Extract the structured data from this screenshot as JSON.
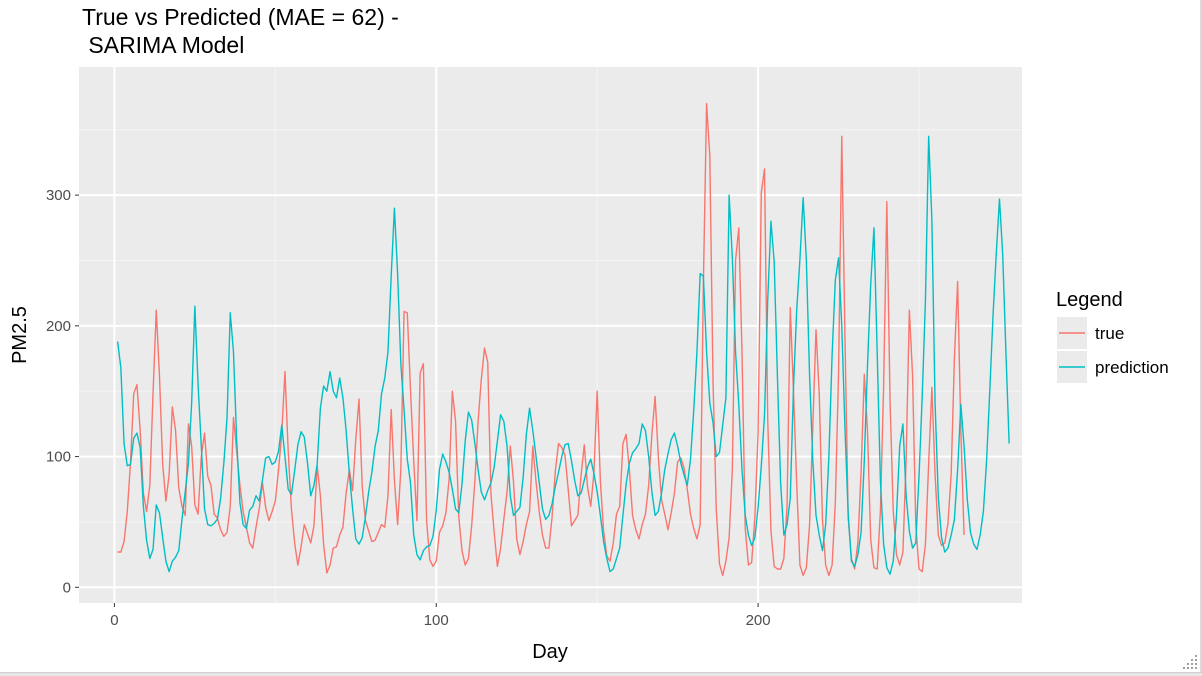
{
  "window": {
    "resize_grip_icon": "resize-grip-icon"
  },
  "chart_data": {
    "type": "line",
    "title_lines": [
      "True vs Predicted (MAE = 62) -",
      " SARIMA Model"
    ],
    "xlabel": "Day",
    "ylabel": "PM2.5",
    "xlim": [
      -11,
      282
    ],
    "ylim": [
      -12,
      398
    ],
    "x_ticks": [
      0,
      100,
      200
    ],
    "x_tick_labels": [
      "0",
      "100",
      "200"
    ],
    "y_ticks": [
      0,
      100,
      200,
      300
    ],
    "y_tick_labels": [
      "0",
      "100",
      "200",
      "300"
    ],
    "grid": true,
    "background": "#ebebeb",
    "legend": {
      "title": "Legend",
      "placement": "right",
      "entries": [
        {
          "label": "true",
          "color": "#f8766d"
        },
        {
          "label": "prediction",
          "color": "#00bfc4"
        }
      ]
    },
    "series": [
      {
        "name": "true",
        "color": "#f8766d",
        "values": [
          27,
          27,
          35,
          58,
          95,
          148,
          155,
          120,
          72,
          58,
          78,
          148,
          212,
          162,
          94,
          66,
          86,
          138,
          120,
          76,
          62,
          55,
          125,
          108,
          63,
          56,
          100,
          118,
          85,
          78,
          56,
          53,
          44,
          39,
          42,
          62,
          130,
          104,
          78,
          58,
          46,
          34,
          30,
          46,
          60,
          80,
          61,
          51,
          58,
          66,
          90,
          118,
          165,
          104,
          60,
          34,
          17,
          31,
          48,
          41,
          34,
          47,
          93,
          70,
          33,
          11,
          17,
          30,
          31,
          40,
          46,
          72,
          90,
          74,
          113,
          144,
          77,
          51,
          43,
          35,
          36,
          42,
          48,
          46,
          70,
          136,
          82,
          48,
          90,
          211,
          210,
          151,
          97,
          51,
          164,
          171,
          51,
          21,
          16,
          20,
          42,
          47,
          57,
          83,
          150,
          127,
          54,
          28,
          17,
          22,
          47,
          81,
          127,
          159,
          183,
          172,
          71,
          42,
          16,
          30,
          52,
          73,
          108,
          81,
          37,
          25,
          35,
          48,
          58,
          108,
          81,
          58,
          40,
          30,
          30,
          54,
          89,
          110,
          107,
          101,
          75,
          47,
          51,
          55,
          86,
          109,
          77,
          62,
          88,
          150,
          81,
          43,
          24,
          20,
          34,
          56,
          62,
          110,
          117,
          90,
          55,
          44,
          37,
          48,
          56,
          78,
          117,
          146,
          100,
          67,
          56,
          44,
          57,
          72,
          96,
          99,
          91,
          75,
          56,
          45,
          37,
          48,
          232,
          370,
          330,
          157,
          60,
          18,
          9,
          20,
          38,
          90,
          250,
          275,
          180,
          45,
          17,
          19,
          54,
          118,
          302,
          320,
          128,
          43,
          16,
          14,
          14,
          22,
          62,
          214,
          150,
          79,
          17,
          9,
          15,
          48,
          123,
          197,
          148,
          52,
          17,
          9,
          17,
          65,
          163,
          345,
          190,
          53,
          22,
          14,
          34,
          88,
          163,
          119,
          36,
          15,
          14,
          58,
          153,
          295,
          143,
          58,
          25,
          17,
          27,
          98,
          212,
          162,
          48,
          14,
          12,
          33,
          95,
          153,
          86,
          40,
          32,
          34,
          49,
          87,
          175,
          234,
          120,
          40
        ]
      },
      {
        "name": "prediction",
        "color": "#00bfc4",
        "values": [
          188,
          168,
          110,
          93,
          94,
          114,
          118,
          107,
          62,
          36,
          22,
          29,
          63,
          57,
          38,
          20,
          12,
          20,
          23,
          28,
          52,
          73,
          95,
          141,
          215,
          155,
          108,
          60,
          48,
          47,
          49,
          52,
          68,
          95,
          130,
          210,
          180,
          112,
          65,
          48,
          45,
          59,
          62,
          70,
          66,
          82,
          99,
          100,
          94,
          96,
          104,
          124,
          100,
          75,
          71,
          89,
          109,
          119,
          115,
          95,
          70,
          78,
          94,
          137,
          154,
          150,
          165,
          150,
          145,
          160,
          145,
          120,
          87,
          60,
          37,
          33,
          38,
          54,
          73,
          88,
          108,
          120,
          148,
          160,
          180,
          238,
          290,
          240,
          171,
          136,
          98,
          80,
          40,
          25,
          21,
          28,
          31,
          32,
          39,
          59,
          90,
          102,
          96,
          88,
          75,
          60,
          57,
          79,
          112,
          134,
          128,
          110,
          90,
          73,
          67,
          74,
          80,
          92,
          112,
          132,
          127,
          108,
          70,
          55,
          58,
          61,
          84,
          117,
          137,
          120,
          100,
          80,
          60,
          52,
          55,
          64,
          77,
          88,
          100,
          109,
          110,
          97,
          82,
          70,
          72,
          82,
          92,
          98,
          87,
          73,
          55,
          35,
          22,
          12,
          14,
          22,
          30,
          55,
          79,
          95,
          103,
          106,
          110,
          125,
          120,
          100,
          73,
          55,
          58,
          72,
          90,
          102,
          113,
          118,
          108,
          95,
          86,
          78,
          98,
          135,
          180,
          240,
          238,
          180,
          141,
          126,
          100,
          103,
          124,
          145,
          300,
          252,
          180,
          140,
          90,
          55,
          40,
          32,
          38,
          61,
          93,
          132,
          220,
          280,
          249,
          162,
          80,
          40,
          48,
          68,
          153,
          212,
          251,
          298,
          250,
          162,
          97,
          55,
          40,
          28,
          48,
          100,
          178,
          235,
          252,
          200,
          121,
          56,
          20,
          16,
          25,
          42,
          97,
          170,
          232,
          275,
          180,
          82,
          33,
          15,
          10,
          20,
          55,
          108,
          125,
          70,
          43,
          30,
          34,
          85,
          146,
          220,
          345,
          281,
          140,
          69,
          38,
          27,
          30,
          40,
          52,
          90,
          140,
          108,
          67,
          42,
          33,
          29,
          40,
          58,
          97,
          151,
          208,
          255,
          297,
          255,
          180,
          110
        ]
      }
    ]
  }
}
